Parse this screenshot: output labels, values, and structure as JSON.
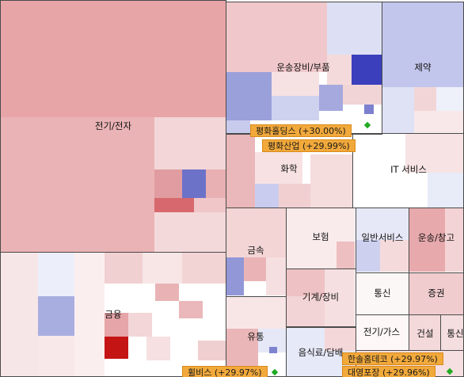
{
  "sectors": {
    "elec": "전기/전자",
    "transport_eq": "운송장비/부품",
    "pharma": "제약",
    "chem": "화학",
    "it": "IT 서비스",
    "finance": "금융",
    "metal": "금속",
    "insurance": "보험",
    "general_svc": "일반서비스",
    "shipping": "운송/창고",
    "machinery": "기계/장비",
    "telecom": "통신",
    "securities": "증권",
    "distribution": "유통",
    "food": "음식료/담배",
    "utility": "전기/가스",
    "construction": "건설",
    "telecom2": "통신"
  },
  "callouts": {
    "c1": "평화홀딩스 (+30.00%)",
    "c2": "평화산업 (+29.99%)",
    "c3": "한솔홈데코 (+29.97%)",
    "c4": "대영포장 (+29.96%)",
    "c5": "휠비스 (+29.97%)"
  },
  "colors": {
    "up_strong": "#c41414",
    "up_mid": "#e0a0a0",
    "up_light": "#f3dada",
    "down_strong": "#3a3fbf",
    "down_mid": "#9ea4dc",
    "down_light": "#dcdff3",
    "flat": "#ffffff",
    "callout": "#f2a93b"
  }
}
